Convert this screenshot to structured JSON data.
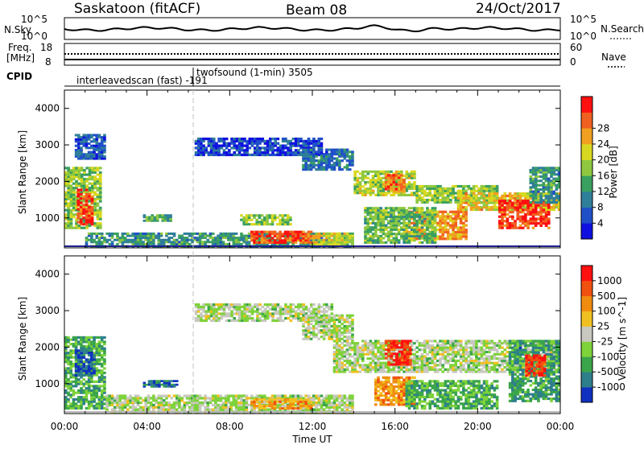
{
  "header": {
    "station": "Saskatoon (fitACF)",
    "beam": "Beam 08",
    "date": "24/Oct/2017"
  },
  "noise_panel": {
    "left_label": "N.Sky",
    "left_ticks": [
      "10^5",
      "10^0"
    ],
    "right_label": "N.Search",
    "right_ticks": [
      "10^5",
      "10^0"
    ]
  },
  "freq_panel": {
    "left_label_1": "Freq.",
    "left_label_2": "[MHz]",
    "left_ticks": [
      "18",
      "8"
    ],
    "right_label": "Nave",
    "right_ticks": [
      "60",
      "0"
    ]
  },
  "cpid": {
    "label": "CPID",
    "mode_1": "interleavedscan (fast) -191",
    "mode_2": "twofsound (1-min) 3505"
  },
  "x_axis": {
    "label": "Time UT",
    "ticks": [
      "00:00",
      "04:00",
      "08:00",
      "12:00",
      "16:00",
      "20:00",
      "00:00"
    ]
  },
  "chart_data": [
    {
      "type": "heatmap",
      "panel": "power",
      "ylabel": "Slant Range [km]",
      "y_ticks": [
        "1000",
        "2000",
        "3000",
        "4000"
      ],
      "ylim": [
        180,
        4500
      ],
      "xlim_hours": [
        0,
        24
      ],
      "colorbar": {
        "label": "Power [dB]",
        "ticks": [
          "4",
          "8",
          "12",
          "16",
          "20",
          "24",
          "28"
        ],
        "colors": [
          "#1010e0",
          "#2050c8",
          "#2f7f9a",
          "#3aa060",
          "#8fc840",
          "#d8d820",
          "#f0a020",
          "#f06020",
          "#ff1010"
        ]
      },
      "blobs": [
        {
          "t0": 0.0,
          "t1": 1.8,
          "r0": 700,
          "r1": 2400,
          "level": 0.5
        },
        {
          "t0": 0.6,
          "t1": 1.4,
          "r0": 800,
          "r1": 1800,
          "level": 0.9
        },
        {
          "t0": 0.5,
          "t1": 2.0,
          "r0": 2600,
          "r1": 3300,
          "level": 0.2
        },
        {
          "t0": 1.0,
          "t1": 14.0,
          "r0": 200,
          "r1": 600,
          "level": 0.35
        },
        {
          "t0": 9.0,
          "t1": 12.0,
          "r0": 300,
          "r1": 650,
          "level": 0.85
        },
        {
          "t0": 12.0,
          "t1": 14.0,
          "r0": 250,
          "r1": 600,
          "level": 0.6
        },
        {
          "t0": 6.3,
          "t1": 12.5,
          "r0": 2700,
          "r1": 3200,
          "level": 0.15
        },
        {
          "t0": 11.5,
          "t1": 14.0,
          "r0": 2300,
          "r1": 2900,
          "level": 0.25
        },
        {
          "t0": 3.8,
          "t1": 5.2,
          "r0": 900,
          "r1": 1100,
          "level": 0.4
        },
        {
          "t0": 8.5,
          "t1": 11.0,
          "r0": 800,
          "r1": 1100,
          "level": 0.5
        },
        {
          "t0": 14.0,
          "t1": 17.0,
          "r0": 1600,
          "r1": 2300,
          "level": 0.55
        },
        {
          "t0": 15.5,
          "t1": 16.5,
          "r0": 1700,
          "r1": 2200,
          "level": 0.8
        },
        {
          "t0": 17.0,
          "t1": 21.0,
          "r0": 1400,
          "r1": 1900,
          "level": 0.5
        },
        {
          "t0": 16.5,
          "t1": 19.5,
          "r0": 400,
          "r1": 1200,
          "level": 0.75
        },
        {
          "t0": 19.0,
          "t1": 24.0,
          "r0": 1200,
          "r1": 1700,
          "level": 0.65
        },
        {
          "t0": 21.0,
          "t1": 23.5,
          "r0": 700,
          "r1": 1500,
          "level": 0.9
        },
        {
          "t0": 22.5,
          "t1": 24.0,
          "r0": 1400,
          "r1": 2400,
          "level": 0.35
        },
        {
          "t0": 14.5,
          "t1": 18.0,
          "r0": 300,
          "r1": 1300,
          "level": 0.45
        }
      ]
    },
    {
      "type": "heatmap",
      "panel": "velocity",
      "ylabel": "Slant Range [km]",
      "y_ticks": [
        "1000",
        "2000",
        "3000",
        "4000"
      ],
      "ylim": [
        180,
        4500
      ],
      "xlim_hours": [
        0,
        24
      ],
      "colorbar": {
        "label": "Velocity [m s^-1]",
        "ticks": [
          "1000",
          "500",
          "100",
          "25",
          "-25",
          "-100",
          "-500",
          "-1000"
        ],
        "colors": [
          "#1030c0",
          "#2e7f8c",
          "#3aa54a",
          "#7ed23a",
          "#c8c8c0",
          "#f0c020",
          "#f08c10",
          "#f05010",
          "#ff1010"
        ]
      },
      "blobs": [
        {
          "t0": 0.0,
          "t1": 2.0,
          "r0": 300,
          "r1": 2300,
          "level": 0.3
        },
        {
          "t0": 0.5,
          "t1": 1.5,
          "r0": 1200,
          "r1": 2000,
          "level": 0.1
        },
        {
          "t0": 2.0,
          "t1": 14.0,
          "r0": 200,
          "r1": 700,
          "level": 0.45
        },
        {
          "t0": 9.0,
          "t1": 12.0,
          "r0": 300,
          "r1": 600,
          "level": 0.68
        },
        {
          "t0": 6.3,
          "t1": 13.0,
          "r0": 2700,
          "r1": 3200,
          "level": 0.45
        },
        {
          "t0": 11.5,
          "t1": 14.0,
          "r0": 2200,
          "r1": 2900,
          "level": 0.45
        },
        {
          "t0": 13.0,
          "t1": 24.0,
          "r0": 1300,
          "r1": 2200,
          "level": 0.45
        },
        {
          "t0": 15.5,
          "t1": 16.8,
          "r0": 1500,
          "r1": 2200,
          "level": 0.9
        },
        {
          "t0": 15.0,
          "t1": 17.0,
          "r0": 400,
          "r1": 1200,
          "level": 0.72
        },
        {
          "t0": 16.5,
          "t1": 21.0,
          "r0": 300,
          "r1": 1100,
          "level": 0.3
        },
        {
          "t0": 21.5,
          "t1": 24.0,
          "r0": 500,
          "r1": 2200,
          "level": 0.25
        },
        {
          "t0": 22.3,
          "t1": 23.3,
          "r0": 1200,
          "r1": 1800,
          "level": 0.9
        },
        {
          "t0": 3.8,
          "t1": 5.5,
          "r0": 900,
          "r1": 1100,
          "level": 0.15
        }
      ]
    }
  ]
}
